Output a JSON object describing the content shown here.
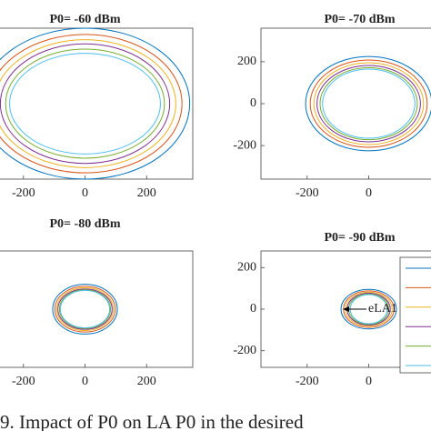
{
  "chart_data": [
    {
      "type": "ellipse",
      "title": "P0= -60 dBm",
      "xlim": [
        -350,
        350
      ],
      "ylim": [
        -360,
        360
      ],
      "xticks": [
        -200,
        0,
        200
      ],
      "series": [
        {
          "color": "#0072bd",
          "values": [
            340,
            360
          ]
        },
        {
          "color": "#d95319",
          "values": [
            315,
            330
          ]
        },
        {
          "color": "#edb120",
          "values": [
            295,
            305
          ]
        },
        {
          "color": "#7e2f8e",
          "values": [
            275,
            285
          ]
        },
        {
          "color": "#77ac30",
          "values": [
            258,
            260
          ]
        },
        {
          "color": "#4dbeee",
          "values": [
            245,
            240
          ]
        }
      ]
    },
    {
      "type": "ellipse",
      "title": "P0= -70 dBm",
      "xlim": [
        -350,
        350
      ],
      "ylim": [
        -360,
        360
      ],
      "xticks": [
        -200,
        0
      ],
      "yticks": [
        -200,
        0,
        200
      ],
      "series": [
        {
          "color": "#0072bd",
          "values": [
            205,
            225
          ]
        },
        {
          "color": "#d95319",
          "values": [
            190,
            208
          ]
        },
        {
          "color": "#edb120",
          "values": [
            178,
            195
          ]
        },
        {
          "color": "#7e2f8e",
          "values": [
            168,
            182
          ]
        },
        {
          "color": "#77ac30",
          "values": [
            158,
            172
          ]
        },
        {
          "color": "#4dbeee",
          "values": [
            150,
            165
          ]
        }
      ]
    },
    {
      "type": "ellipse",
      "title": "P0= -80 dBm",
      "xlim": [
        -350,
        350
      ],
      "ylim": [
        -280,
        280
      ],
      "xticks": [
        -200,
        0,
        200
      ],
      "series": [
        {
          "color": "#0072bd",
          "values": [
            105,
            120
          ]
        },
        {
          "color": "#d95319",
          "values": [
            98,
            110
          ]
        },
        {
          "color": "#edb120",
          "values": [
            92,
            103
          ]
        },
        {
          "color": "#7e2f8e",
          "values": [
            88,
            97
          ]
        },
        {
          "color": "#77ac30",
          "values": [
            83,
            93
          ]
        },
        {
          "color": "#4dbeee",
          "values": [
            80,
            90
          ]
        }
      ]
    },
    {
      "type": "ellipse",
      "title": "P0= -90 dBm",
      "xlim": [
        -350,
        350
      ],
      "ylim": [
        -280,
        280
      ],
      "xticks": [
        -200,
        0
      ],
      "yticks": [
        -200,
        0,
        200
      ],
      "annotation": "eLA1",
      "series": [
        {
          "color": "#0072bd",
          "values": [
            90,
            95
          ]
        },
        {
          "color": "#d95319",
          "values": [
            82,
            88
          ]
        },
        {
          "color": "#edb120",
          "values": [
            76,
            82
          ]
        },
        {
          "color": "#7e2f8e",
          "values": [
            70,
            77
          ]
        },
        {
          "color": "#77ac30",
          "values": [
            65,
            73
          ]
        },
        {
          "color": "#4dbeee",
          "values": [
            60,
            70
          ]
        }
      ]
    }
  ],
  "caption": "9. Impact of P0 on LA P0 in the desired"
}
